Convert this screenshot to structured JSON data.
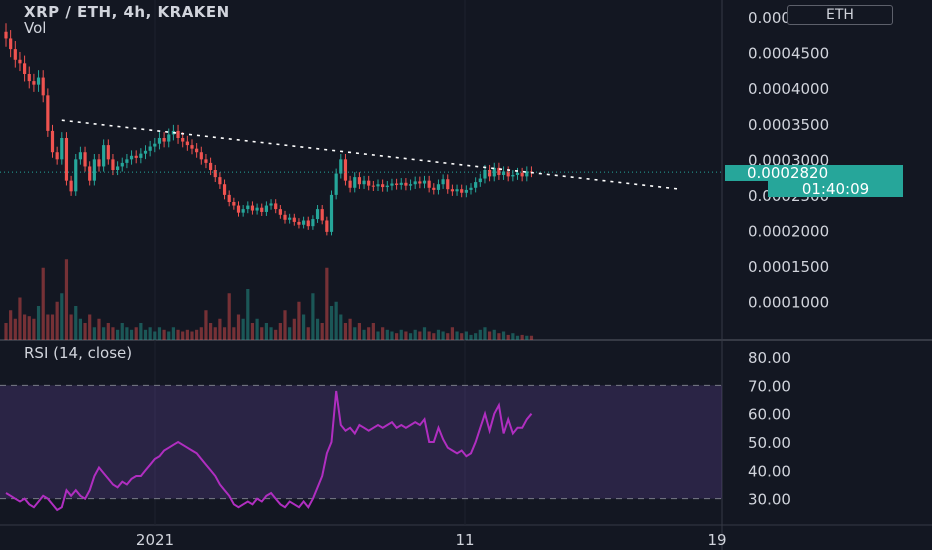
{
  "header": {
    "title": "XRP / ETH, 4h, KRAKEN",
    "volume_label": "Vol"
  },
  "currency_badge": "ETH",
  "current_price_label": "0.0002820",
  "countdown": "01:40:09",
  "rsi": {
    "title": "RSI (14, close)",
    "upper_band": 70,
    "lower_band": 30
  },
  "colors": {
    "background": "#131722",
    "up": "#26a69a",
    "down": "#ef5350",
    "rsi_line": "#b02ec0",
    "rsi_band": "#7e57c2",
    "trendline": "#ffffff"
  },
  "chart_data": [
    {
      "type": "candlestick",
      "title": "XRP / ETH, 4h, KRAKEN",
      "price_axis_ticks": [
        "0.0005000",
        "0.0004500",
        "0.0004000",
        "0.0003500",
        "0.0003000",
        "0.0002500",
        "0.0002000",
        "0.0001500",
        "0.0001000"
      ],
      "time_axis_ticks": [
        "2021",
        "11",
        "19"
      ],
      "ylim": [
        6e-05,
        0.00051
      ],
      "last_price": 0.000282,
      "close": [
        0.00047,
        0.000455,
        0.00044,
        0.000435,
        0.00042,
        0.00041,
        0.000405,
        0.000415,
        0.00039,
        0.00034,
        0.00031,
        0.0003,
        0.00033,
        0.00027,
        0.000255,
        0.0003,
        0.00031,
        0.00029,
        0.00027,
        0.0003,
        0.00029,
        0.00032,
        0.0003,
        0.000285,
        0.00029,
        0.000295,
        0.0003,
        0.000305,
        0.000302,
        0.000308,
        0.000312,
        0.000318,
        0.000322,
        0.00033,
        0.000325,
        0.000335,
        0.00034,
        0.00033,
        0.000325,
        0.00032,
        0.000315,
        0.00031,
        0.0003,
        0.000295,
        0.000285,
        0.000275,
        0.000265,
        0.00025,
        0.00024,
        0.000235,
        0.000225,
        0.00023,
        0.000235,
        0.000228,
        0.000232,
        0.000226,
        0.000235,
        0.000238,
        0.00023,
        0.000222,
        0.000215,
        0.000218,
        0.000212,
        0.000208,
        0.000214,
        0.000206,
        0.000216,
        0.00023,
        0.000214,
        0.000198,
        0.00025,
        0.00028,
        0.0003,
        0.00027,
        0.00026,
        0.000275,
        0.000265,
        0.00027,
        0.000263,
        0.000262,
        0.000265,
        0.000261,
        0.000263,
        0.000266,
        0.000264,
        0.000267,
        0.000263,
        0.000265,
        0.000269,
        0.000266,
        0.00027,
        0.00026,
        0.000257,
        0.000265,
        0.000272,
        0.000258,
        0.000255,
        0.000258,
        0.000253,
        0.000257,
        0.00026,
        0.000268,
        0.000273,
        0.000285,
        0.000276,
        0.000288,
        0.000278,
        0.000283,
        0.000276,
        0.000278,
        0.000281,
        0.000276,
        0.000283,
        0.000282
      ],
      "volume": [
        0.2,
        0.35,
        0.25,
        0.5,
        0.3,
        0.28,
        0.25,
        0.4,
        0.85,
        0.3,
        0.3,
        0.45,
        0.55,
        0.95,
        0.3,
        0.4,
        0.25,
        0.2,
        0.3,
        0.15,
        0.25,
        0.15,
        0.2,
        0.15,
        0.12,
        0.2,
        0.15,
        0.12,
        0.15,
        0.2,
        0.12,
        0.15,
        0.1,
        0.15,
        0.12,
        0.1,
        0.15,
        0.12,
        0.1,
        0.12,
        0.1,
        0.12,
        0.15,
        0.35,
        0.2,
        0.15,
        0.25,
        0.15,
        0.55,
        0.15,
        0.3,
        0.25,
        0.6,
        0.2,
        0.25,
        0.15,
        0.2,
        0.15,
        0.12,
        0.2,
        0.35,
        0.15,
        0.25,
        0.45,
        0.3,
        0.15,
        0.55,
        0.25,
        0.2,
        0.85,
        0.4,
        0.45,
        0.3,
        0.2,
        0.25,
        0.15,
        0.2,
        0.12,
        0.15,
        0.2,
        0.1,
        0.15,
        0.12,
        0.1,
        0.08,
        0.12,
        0.1,
        0.08,
        0.12,
        0.1,
        0.15,
        0.1,
        0.08,
        0.12,
        0.1,
        0.08,
        0.15,
        0.1,
        0.08,
        0.1,
        0.06,
        0.08,
        0.12,
        0.15,
        0.1,
        0.12,
        0.08,
        0.1,
        0.06,
        0.08,
        0.05,
        0.06,
        0.05,
        0.05
      ]
    },
    {
      "type": "line",
      "title": "RSI (14, close)",
      "y_axis_ticks": [
        "80.00",
        "70.00",
        "60.00",
        "50.00",
        "40.00",
        "30.00"
      ],
      "ylim": [
        26,
        86
      ],
      "bands": [
        30,
        70
      ],
      "values": [
        32,
        31,
        30,
        29,
        30,
        28,
        27,
        29,
        31,
        30,
        28,
        26,
        27,
        33,
        31,
        33,
        31,
        30,
        33,
        38,
        41,
        39,
        37,
        35,
        34,
        36,
        35,
        37,
        38,
        38,
        40,
        42,
        44,
        45,
        47,
        48,
        49,
        50,
        49,
        48,
        47,
        46,
        44,
        42,
        40,
        38,
        35,
        33,
        31,
        28,
        27,
        28,
        29,
        28,
        30,
        29,
        31,
        32,
        30,
        28,
        27,
        29,
        28,
        27,
        29,
        27,
        30,
        34,
        38,
        46,
        50,
        68,
        56,
        54,
        55,
        53,
        56,
        55,
        54,
        55,
        56,
        55,
        56,
        57,
        55,
        56,
        55,
        56,
        57,
        56,
        58,
        50,
        50,
        55,
        51,
        48,
        47,
        46,
        47,
        45,
        46,
        50,
        55,
        60,
        54,
        60,
        63,
        53,
        58,
        53,
        55,
        55,
        58,
        60
      ]
    }
  ]
}
